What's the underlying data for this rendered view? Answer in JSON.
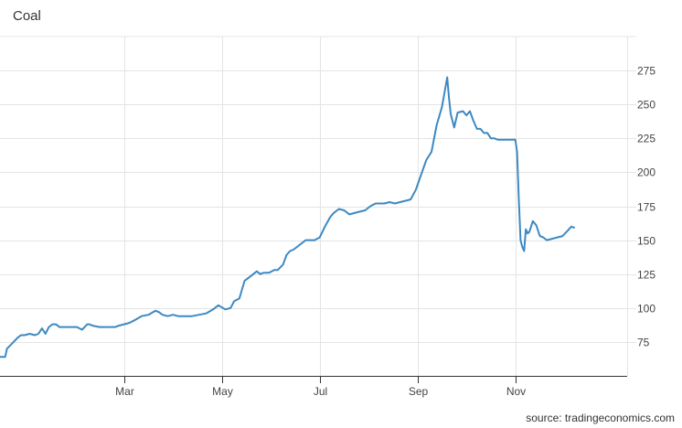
{
  "chart_data": {
    "type": "line",
    "title": "Coal",
    "xlabel": "",
    "ylabel": "",
    "source": "source: tradingeconomics.com",
    "grid": true,
    "ylim": [
      50,
      300
    ],
    "yticks": [
      75,
      100,
      125,
      150,
      175,
      200,
      225,
      250,
      275
    ],
    "xticks": [
      {
        "label": "Mar",
        "x": 51
      },
      {
        "label": "May",
        "x": 107
      },
      {
        "label": "Jul",
        "x": 163
      },
      {
        "label": "Sep",
        "x": 219
      },
      {
        "label": "Nov",
        "x": 275
      }
    ],
    "xlim": [
      -20,
      339
    ],
    "series": [
      {
        "color": "#3d89c2",
        "x": [
          -20,
          -17,
          -16,
          -13,
          -10,
          -8,
          -6,
          -3,
          0,
          2,
          4,
          5,
          6,
          8,
          10,
          12,
          14,
          16,
          18,
          20,
          24,
          27,
          30,
          31,
          33,
          37,
          40,
          43,
          46,
          48,
          51,
          54,
          57,
          61,
          65,
          69,
          71,
          73,
          76,
          79,
          82,
          86,
          90,
          94,
          98,
          102,
          105,
          109,
          112,
          114,
          117,
          120,
          122,
          124,
          127,
          129,
          131,
          134,
          137,
          139,
          142,
          144,
          146,
          148,
          151,
          153,
          155,
          157,
          160,
          163,
          166,
          169,
          171,
          174,
          177,
          180,
          183,
          186,
          189,
          192,
          195,
          197,
          200,
          203,
          206,
          209,
          212,
          215,
          218,
          221,
          224,
          227,
          230,
          233,
          236,
          237,
          238,
          240,
          242,
          245,
          247,
          249,
          251,
          253,
          255,
          257,
          259,
          261,
          263,
          265,
          267,
          269,
          271,
          273,
          275,
          276,
          277,
          278,
          279,
          280,
          281,
          282,
          283,
          285,
          287,
          289,
          291,
          293,
          296,
          299,
          302,
          305,
          307,
          309
        ],
        "values": [
          64,
          64,
          70,
          74,
          78,
          80,
          80,
          81,
          80,
          81,
          85,
          83,
          81,
          86,
          88,
          88,
          86,
          86,
          86,
          86,
          86,
          84,
          88,
          88,
          87,
          86,
          86,
          86,
          86,
          87,
          88,
          89,
          91,
          94,
          95,
          98,
          97,
          95,
          94,
          95,
          94,
          94,
          94,
          95,
          96,
          99,
          102,
          99,
          100,
          105,
          107,
          120,
          122,
          124,
          127,
          125,
          126,
          126,
          128,
          128,
          132,
          139,
          142,
          143,
          146,
          148,
          150,
          150,
          150,
          152,
          160,
          167,
          170,
          173,
          172,
          169,
          170,
          171,
          172,
          175,
          177,
          177,
          177,
          178,
          177,
          178,
          179,
          180,
          187,
          198,
          209,
          215,
          235,
          248,
          270,
          255,
          243,
          233,
          244,
          245,
          242,
          245,
          238,
          232,
          232,
          229,
          229,
          225,
          225,
          224,
          224,
          224,
          224,
          224,
          224,
          215,
          180,
          150,
          145,
          142,
          158,
          155,
          156,
          164,
          161,
          153,
          152,
          150,
          151,
          152,
          153,
          157,
          160,
          159
        ]
      }
    ]
  }
}
